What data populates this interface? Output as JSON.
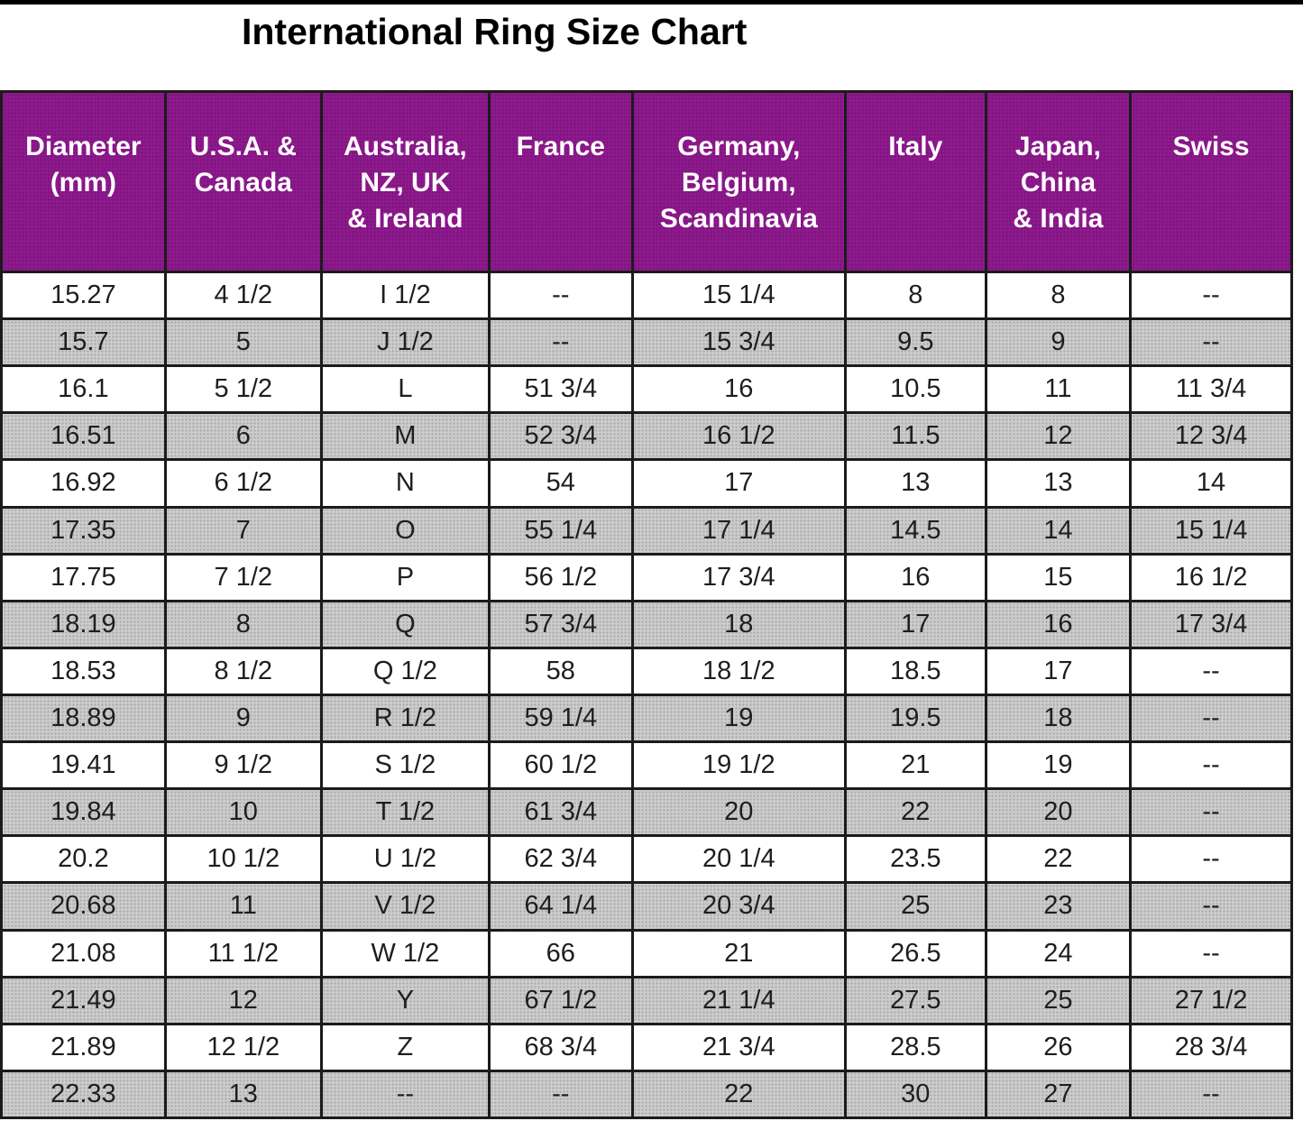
{
  "title": "International Ring Size Chart",
  "colors": {
    "top_bar": "#000000",
    "header_bg": "#8e1a8e",
    "header_text": "#ffffff",
    "row_bg": "#ffffff",
    "row_alt_bg": "#cdcdcd",
    "cell_text": "#1e1e1e",
    "border": "#1b1b1b"
  },
  "chart_data": {
    "type": "table",
    "title": "International Ring Size Chart",
    "columns": [
      "Diameter (mm)",
      "U.S.A. & Canada",
      "Australia, NZ, UK & Ireland",
      "France",
      "Germany, Belgium, Scandinavia",
      "Italy",
      "Japan, China & India",
      "Swiss"
    ],
    "header_lines": [
      [
        "Diameter",
        "(mm)"
      ],
      [
        "U.S.A. &",
        "Canada"
      ],
      [
        "Australia,",
        "NZ, UK",
        "& Ireland"
      ],
      [
        "France"
      ],
      [
        "Germany,",
        "Belgium,",
        "Scandinavia"
      ],
      [
        "Italy"
      ],
      [
        "Japan,",
        "China",
        "& India"
      ],
      [
        "Swiss"
      ]
    ],
    "rows": [
      [
        "15.27",
        "4 1/2",
        "I 1/2",
        "--",
        "15 1/4",
        "8",
        "8",
        "--"
      ],
      [
        "15.7",
        "5",
        "J 1/2",
        "--",
        "15 3/4",
        "9.5",
        "9",
        "--"
      ],
      [
        "16.1",
        "5 1/2",
        "L",
        "51 3/4",
        "16",
        "10.5",
        "11",
        "11 3/4"
      ],
      [
        "16.51",
        "6",
        "M",
        "52 3/4",
        "16 1/2",
        "11.5",
        "12",
        "12 3/4"
      ],
      [
        "16.92",
        "6 1/2",
        "N",
        "54",
        "17",
        "13",
        "13",
        "14"
      ],
      [
        "17.35",
        "7",
        "O",
        "55 1/4",
        "17 1/4",
        "14.5",
        "14",
        "15 1/4"
      ],
      [
        "17.75",
        "7 1/2",
        "P",
        "56 1/2",
        "17 3/4",
        "16",
        "15",
        "16 1/2"
      ],
      [
        "18.19",
        "8",
        "Q",
        "57 3/4",
        "18",
        "17",
        "16",
        "17 3/4"
      ],
      [
        "18.53",
        "8 1/2",
        "Q 1/2",
        "58",
        "18 1/2",
        "18.5",
        "17",
        "--"
      ],
      [
        "18.89",
        "9",
        "R 1/2",
        "59 1/4",
        "19",
        "19.5",
        "18",
        "--"
      ],
      [
        "19.41",
        "9 1/2",
        "S 1/2",
        "60 1/2",
        "19 1/2",
        "21",
        "19",
        "--"
      ],
      [
        "19.84",
        "10",
        "T 1/2",
        "61 3/4",
        "20",
        "22",
        "20",
        "--"
      ],
      [
        "20.2",
        "10 1/2",
        "U 1/2",
        "62 3/4",
        "20 1/4",
        "23.5",
        "22",
        "--"
      ],
      [
        "20.68",
        "11",
        "V 1/2",
        "64 1/4",
        "20 3/4",
        "25",
        "23",
        "--"
      ],
      [
        "21.08",
        "11 1/2",
        "W 1/2",
        "66",
        "21",
        "26.5",
        "24",
        "--"
      ],
      [
        "21.49",
        "12",
        "Y",
        "67 1/2",
        "21 1/4",
        "27.5",
        "25",
        "27 1/2"
      ],
      [
        "21.89",
        "12 1/2",
        "Z",
        "68 3/4",
        "21 3/4",
        "28.5",
        "26",
        "28 3/4"
      ],
      [
        "22.33",
        "13",
        "--",
        "--",
        "22",
        "30",
        "27",
        "--"
      ]
    ]
  }
}
